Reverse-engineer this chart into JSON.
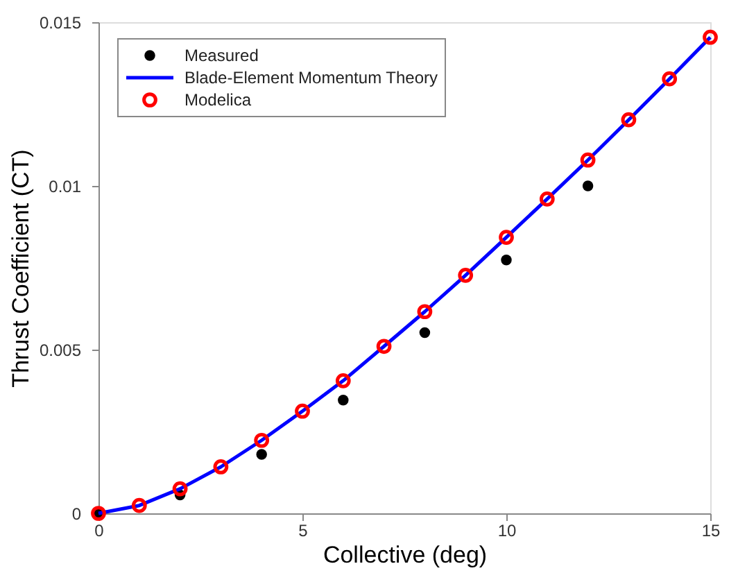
{
  "chart_data": {
    "type": "scatter",
    "xlabel": "Collective (deg)",
    "ylabel": "Thrust Coefficient (CT)",
    "xlim": [
      0,
      15
    ],
    "xticks": [
      0,
      5,
      10,
      15
    ],
    "ylim": [
      0,
      0.015
    ],
    "yticks": [
      {
        "value": 0,
        "label": "0"
      },
      0.005,
      {
        "value": 0.01,
        "label": "0.01"
      },
      0.015
    ],
    "grid": false,
    "legend": "top left",
    "series": [
      {
        "name": "Measured",
        "marker": "circle",
        "color": "#000000",
        "x": [
          0,
          2,
          4,
          6,
          8,
          10,
          12
        ],
        "values": [
          0,
          0.00056,
          0.0018,
          0.00346,
          0.00552,
          0.00774,
          0.01
        ]
      },
      {
        "name": "Blade-Element Momentum Theory",
        "type": "line",
        "line_style": "solid",
        "marker": "none",
        "color": "#0000ff",
        "x": [
          0,
          1,
          2,
          3,
          4,
          5,
          6,
          7,
          8,
          9,
          10,
          11,
          12,
          13,
          14,
          15
        ],
        "values": [
          0,
          0.00024,
          0.00075,
          0.00142,
          0.00223,
          0.00312,
          0.00405,
          0.0051,
          0.00616,
          0.00727,
          0.00843,
          0.0096,
          0.01079,
          0.01202,
          0.01327,
          0.01454
        ]
      },
      {
        "name": "Modelica",
        "marker": "circle",
        "color": "#ff0000",
        "x": [
          0,
          1,
          2,
          3,
          4,
          5,
          6,
          7,
          8,
          9,
          10,
          11,
          12,
          13,
          14,
          15
        ],
        "values": [
          0,
          0.00024,
          0.00075,
          0.00142,
          0.00223,
          0.00312,
          0.00405,
          0.0051,
          0.00616,
          0.00727,
          0.00843,
          0.0096,
          0.01079,
          0.01202,
          0.01327,
          0.01454
        ]
      }
    ]
  }
}
